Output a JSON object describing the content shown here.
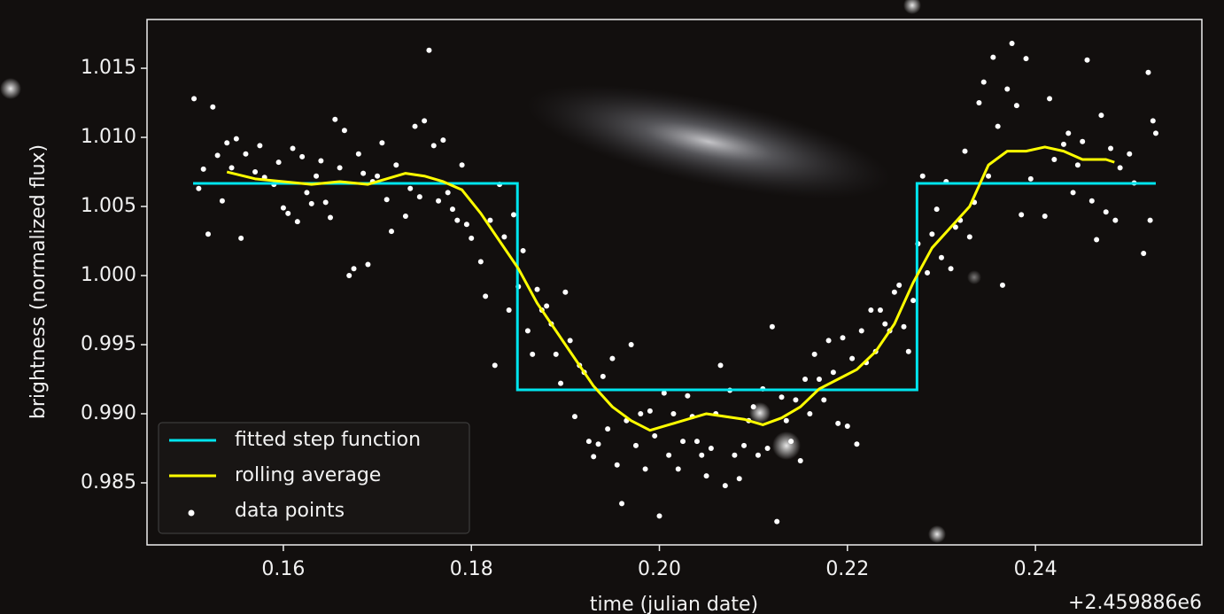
{
  "chart_data": {
    "type": "line",
    "xlabel": "time (julian date)",
    "ylabel": "brightness (normalized flux)",
    "x_offset_label": "+2.459886e6",
    "xlim": [
      0.1455,
      0.2577
    ],
    "ylim": [
      0.98051,
      1.01853
    ],
    "xticks": [
      0.16,
      0.18,
      {
        "value": 0.2,
        "label": "0.20"
      },
      0.22,
      0.24
    ],
    "yticks": [
      0.985,
      {
        "value": 0.99,
        "label": "0.990"
      },
      0.995,
      {
        "value": 1.0,
        "label": "1.000"
      },
      1.005,
      {
        "value": 1.01,
        "label": "1.010"
      },
      1.015
    ],
    "grid": false,
    "legend": "lower left",
    "series": [
      {
        "name": "fitted step function",
        "type": "step",
        "color": "#00e5ee",
        "x": [
          0.1504,
          0.1849,
          0.1849,
          0.2274,
          0.2274,
          0.2528
        ],
        "values": [
          1.00667,
          1.00667,
          0.99173,
          0.99173,
          1.00667,
          1.00667
        ]
      },
      {
        "name": "rolling average",
        "type": "line",
        "color": "#ffff00",
        "x": [
          0.154,
          0.157,
          0.16,
          0.163,
          0.166,
          0.169,
          0.171,
          0.173,
          0.175,
          0.177,
          0.179,
          0.181,
          0.183,
          0.185,
          0.187,
          0.189,
          0.191,
          0.193,
          0.195,
          0.197,
          0.199,
          0.201,
          0.203,
          0.205,
          0.207,
          0.209,
          0.211,
          0.213,
          0.215,
          0.217,
          0.219,
          0.221,
          0.223,
          0.225,
          0.227,
          0.229,
          0.231,
          0.233,
          0.235,
          0.237,
          0.239,
          0.241,
          0.243,
          0.245,
          0.2475,
          0.2484
        ],
        "values": [
          1.0075,
          1.007,
          1.0068,
          1.0066,
          1.0068,
          1.0066,
          1.007,
          1.0074,
          1.0072,
          1.0068,
          1.0062,
          1.0045,
          1.0025,
          1.0005,
          0.998,
          0.996,
          0.994,
          0.992,
          0.9905,
          0.9895,
          0.9888,
          0.9892,
          0.9896,
          0.99,
          0.9898,
          0.9896,
          0.9892,
          0.9897,
          0.9905,
          0.9918,
          0.9925,
          0.9932,
          0.9945,
          0.9965,
          0.9995,
          1.002,
          1.0035,
          1.005,
          1.008,
          1.009,
          1.009,
          1.0093,
          1.009,
          1.0084,
          1.0084,
          1.0082
        ]
      },
      {
        "name": "data points",
        "type": "scatter",
        "color": "#ffffff",
        "x": [
          0.1505,
          0.151,
          0.1515,
          0.152,
          0.1525,
          0.153,
          0.1535,
          0.154,
          0.1545,
          0.155,
          0.1555,
          0.156,
          0.157,
          0.1575,
          0.158,
          0.159,
          0.1595,
          0.16,
          0.1605,
          0.161,
          0.1615,
          0.162,
          0.1625,
          0.163,
          0.1635,
          0.164,
          0.1645,
          0.165,
          0.1655,
          0.166,
          0.1665,
          0.167,
          0.1675,
          0.168,
          0.1685,
          0.169,
          0.1695,
          0.17,
          0.1705,
          0.171,
          0.1715,
          0.172,
          0.173,
          0.1735,
          0.174,
          0.1745,
          0.175,
          0.1755,
          0.176,
          0.1765,
          0.177,
          0.1775,
          0.178,
          0.1785,
          0.179,
          0.1795,
          0.18,
          0.181,
          0.1815,
          0.182,
          0.1825,
          0.183,
          0.1835,
          0.184,
          0.1845,
          0.185,
          0.1855,
          0.186,
          0.1865,
          0.187,
          0.1875,
          0.188,
          0.1885,
          0.189,
          0.1895,
          0.19,
          0.1905,
          0.191,
          0.1915,
          0.192,
          0.1925,
          0.193,
          0.1935,
          0.194,
          0.1945,
          0.195,
          0.1955,
          0.196,
          0.1965,
          0.197,
          0.1975,
          0.198,
          0.1985,
          0.199,
          0.1995,
          0.2,
          0.2005,
          0.201,
          0.2015,
          0.202,
          0.2025,
          0.203,
          0.2035,
          0.204,
          0.2045,
          0.205,
          0.2055,
          0.206,
          0.2065,
          0.207,
          0.2075,
          0.208,
          0.2085,
          0.209,
          0.2095,
          0.21,
          0.2105,
          0.211,
          0.2115,
          0.212,
          0.2125,
          0.213,
          0.2135,
          0.214,
          0.2145,
          0.215,
          0.2155,
          0.216,
          0.2165,
          0.217,
          0.2175,
          0.218,
          0.2185,
          0.219,
          0.2195,
          0.22,
          0.2205,
          0.221,
          0.2215,
          0.222,
          0.2225,
          0.223,
          0.2235,
          0.224,
          0.2245,
          0.225,
          0.2255,
          0.226,
          0.2265,
          0.227,
          0.2275,
          0.228,
          0.2285,
          0.229,
          0.2295,
          0.23,
          0.2305,
          0.231,
          0.2315,
          0.232,
          0.2325,
          0.233,
          0.2335,
          0.234,
          0.2345,
          0.235,
          0.2355,
          0.236,
          0.2365,
          0.237,
          0.2375,
          0.238,
          0.2385,
          0.239,
          0.2395,
          0.241,
          0.2415,
          0.242,
          0.243,
          0.2435,
          0.244,
          0.2445,
          0.245,
          0.2455,
          0.246,
          0.2465,
          0.247,
          0.2475,
          0.248,
          0.2485,
          0.249,
          0.25,
          0.2505,
          0.2515,
          0.252,
          0.2525,
          0.2528,
          0.2522
        ],
        "values": [
          1.0128,
          1.0063,
          1.0077,
          1.003,
          1.0122,
          1.0087,
          1.0054,
          1.0096,
          1.0078,
          1.0099,
          1.0027,
          1.0088,
          1.0075,
          1.0094,
          1.0071,
          1.0066,
          1.0082,
          1.0049,
          1.0045,
          1.0092,
          1.0039,
          1.0086,
          1.006,
          1.0052,
          1.0072,
          1.0083,
          1.0053,
          1.0042,
          1.0113,
          1.0078,
          1.0105,
          1.0,
          1.0005,
          1.0088,
          1.0074,
          1.0008,
          1.0068,
          1.0072,
          1.0096,
          1.0055,
          1.0032,
          1.008,
          1.0043,
          1.0063,
          1.0108,
          1.0057,
          1.0112,
          1.0163,
          1.0094,
          1.0054,
          1.0098,
          1.006,
          1.0048,
          1.004,
          1.008,
          1.0037,
          1.0027,
          1.001,
          0.9985,
          1.004,
          0.9935,
          1.0066,
          1.0028,
          0.9975,
          1.0044,
          0.9992,
          1.0018,
          0.996,
          0.9943,
          0.999,
          0.9975,
          0.9978,
          0.9965,
          0.9943,
          0.9922,
          0.9988,
          0.9953,
          0.9898,
          0.9935,
          0.993,
          0.988,
          0.9869,
          0.9878,
          0.9927,
          0.9889,
          0.994,
          0.9863,
          0.9835,
          0.9895,
          0.995,
          0.9877,
          0.99,
          0.986,
          0.9902,
          0.9884,
          0.9826,
          0.9915,
          0.987,
          0.99,
          0.986,
          0.988,
          0.9913,
          0.9898,
          0.988,
          0.987,
          0.9855,
          0.9875,
          0.99,
          0.9935,
          0.9848,
          0.9917,
          0.987,
          0.9853,
          0.9877,
          0.9895,
          0.9905,
          0.987,
          0.9918,
          0.9875,
          0.9963,
          0.9822,
          0.9912,
          0.9895,
          0.988,
          0.991,
          0.9866,
          0.9925,
          0.99,
          0.9943,
          0.9925,
          0.991,
          0.9953,
          0.993,
          0.9893,
          0.9955,
          0.9891,
          0.994,
          0.9878,
          0.996,
          0.9937,
          0.9975,
          0.9945,
          0.9975,
          0.9965,
          0.996,
          0.9988,
          0.9993,
          0.9963,
          0.9945,
          0.9982,
          1.0023,
          1.0072,
          1.0002,
          1.003,
          1.0048,
          1.0013,
          1.0068,
          1.0005,
          1.0035,
          1.004,
          1.009,
          1.0028,
          1.0053,
          1.0125,
          1.014,
          1.0072,
          1.0158,
          1.0108,
          0.9993,
          1.0135,
          1.0168,
          1.0123,
          1.0044,
          1.0157,
          1.007,
          1.0043,
          1.0128,
          1.0084,
          1.0095,
          1.0103,
          1.006,
          1.008,
          1.0097,
          1.0156,
          1.0054,
          1.0026,
          1.0116,
          1.0046,
          1.0092,
          1.004,
          1.0078,
          1.0088,
          1.0067,
          1.0016,
          1.0147,
          1.0112,
          1.0103,
          1.004
        ]
      }
    ]
  }
}
